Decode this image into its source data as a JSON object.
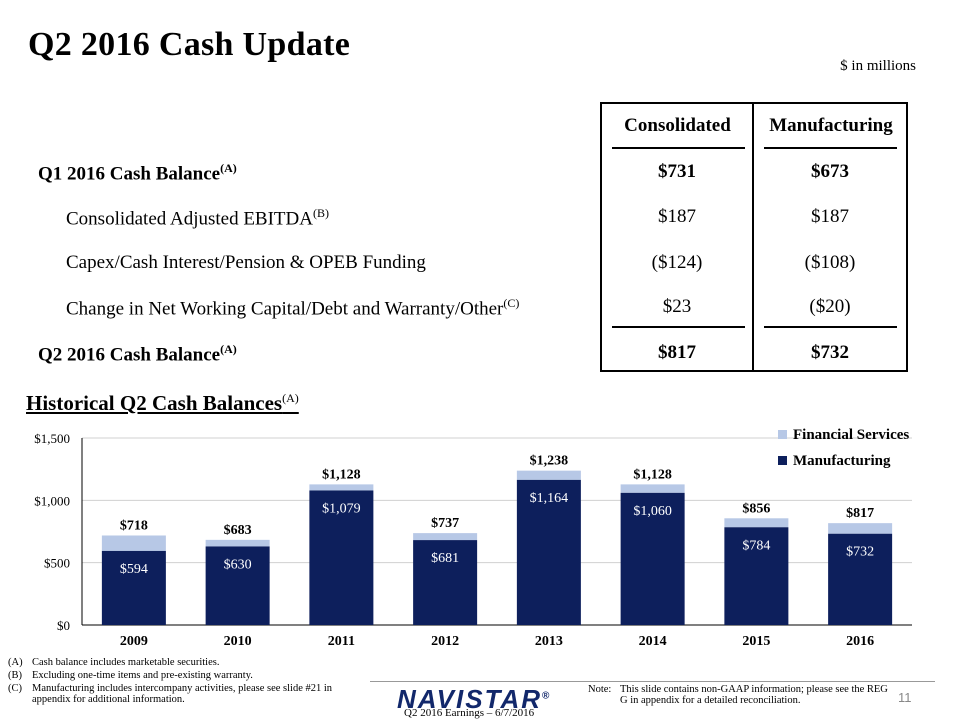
{
  "header": {
    "title": "Q2 2016 Cash Update",
    "units": "$ in millions"
  },
  "table": {
    "col_consolidated": "Consolidated",
    "col_manufacturing": "Manufacturing",
    "rows": [
      {
        "label": "Q1 2016 Cash Balance",
        "sup": "(A)",
        "consolidated": "$731",
        "manufacturing": "$673"
      },
      {
        "label": "Consolidated Adjusted EBITDA",
        "sup": "(B)",
        "consolidated": "$187",
        "manufacturing": "$187"
      },
      {
        "label": "Capex/Cash Interest/Pension & OPEB Funding",
        "sup": "",
        "consolidated": "($124)",
        "manufacturing": "($108)"
      },
      {
        "label": "Change in Net Working Capital/Debt and Warranty/Other",
        "sup": "(C)",
        "consolidated": "$23",
        "manufacturing": "($20)"
      },
      {
        "label": "Q2 2016 Cash Balance",
        "sup": "(A)",
        "consolidated": "$817",
        "manufacturing": "$732"
      }
    ]
  },
  "historical": {
    "title": "Historical Q2 Cash Balances",
    "title_sup": "(A)"
  },
  "chart_data": {
    "type": "bar",
    "stacked": true,
    "categories": [
      "2009",
      "2010",
      "2011",
      "2012",
      "2013",
      "2014",
      "2015",
      "2016"
    ],
    "series": [
      {
        "name": "Manufacturing",
        "color": "#0d1f5c",
        "values": [
          594,
          630,
          1079,
          681,
          1164,
          1060,
          784,
          732
        ],
        "labels": [
          "$594",
          "$630",
          "$1,079",
          "$681",
          "$1,164",
          "$1,060",
          "$784",
          "$732"
        ]
      },
      {
        "name": "Financial Services",
        "color": "#b7c8e6",
        "values": [
          124,
          53,
          49,
          56,
          74,
          68,
          72,
          85
        ]
      }
    ],
    "totals": [
      718,
      683,
      1128,
      737,
      1238,
      1128,
      856,
      817
    ],
    "total_labels": [
      "$718",
      "$683",
      "$1,128",
      "$737",
      "$1,238",
      "$1,128",
      "$856",
      "$817"
    ],
    "yticks": [
      "$0",
      "$500",
      "$1,000",
      "$1,500"
    ],
    "ytick_values": [
      0,
      500,
      1000,
      1500
    ],
    "ylim": [
      0,
      1500
    ],
    "grid": true,
    "legend": "top-right"
  },
  "footnotes": [
    {
      "key": "(A)",
      "text": "Cash balance includes marketable securities."
    },
    {
      "key": "(B)",
      "text": "Excluding one-time items and pre-existing warranty."
    },
    {
      "key": "(C)",
      "text": "Manufacturing includes intercompany activities, please see slide #21 in appendix for additional information."
    }
  ],
  "footer": {
    "note_label": "Note:",
    "note_text": "This slide contains non-GAAP information; please see the REG G in appendix for a detailed reconciliation.",
    "logo": "NAVISTAR",
    "logo_mark": "®",
    "event": "Q2 2016 Earnings – 6/7/2016",
    "page_number": "11"
  }
}
